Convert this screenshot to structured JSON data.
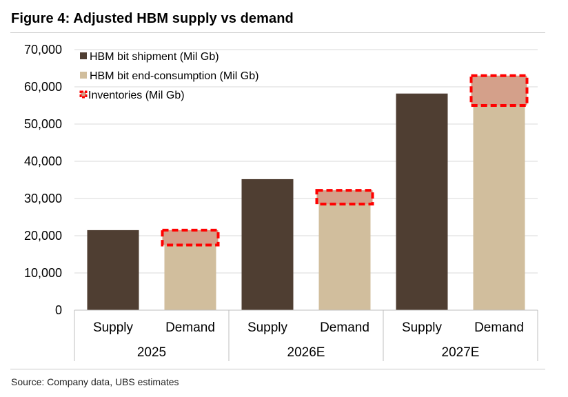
{
  "figure": {
    "title": "Figure 4: Adjusted HBM supply vs demand",
    "source": "Source: Company data, UBS estimates"
  },
  "colors": {
    "shipment": "#4f3e32",
    "consumption": "#d1be9d",
    "inventory_fill": "#d4a08a",
    "inventory_border": "#ff0000",
    "gridline": "#d9d9d9"
  },
  "chart_data": {
    "type": "bar",
    "ylim": [
      0,
      70000
    ],
    "yticks": [
      0,
      10000,
      20000,
      30000,
      40000,
      50000,
      60000,
      70000
    ],
    "ytick_labels": [
      "0",
      "10,000",
      "20,000",
      "30,000",
      "40,000",
      "50,000",
      "60,000",
      "70,000"
    ],
    "grid": true,
    "legend_position": "top-left",
    "groups": [
      {
        "label": "2025",
        "supply_label": "Supply",
        "demand_label": "Demand",
        "supply": 21500,
        "consumption": 17500,
        "inventory": 4000
      },
      {
        "label": "2026E",
        "supply_label": "Supply",
        "demand_label": "Demand",
        "supply": 35200,
        "consumption": 28500,
        "inventory": 3700
      },
      {
        "label": "2027E",
        "supply_label": "Supply",
        "demand_label": "Demand",
        "supply": 58200,
        "consumption": 55000,
        "inventory": 8000
      }
    ],
    "series": [
      {
        "name": "HBM bit shipment (Mil Gb)",
        "key": "supply"
      },
      {
        "name": "HBM bit end-consumption (Mil Gb)",
        "key": "consumption"
      },
      {
        "name": "Inventories (Mil Gb)",
        "key": "inventory"
      }
    ]
  }
}
